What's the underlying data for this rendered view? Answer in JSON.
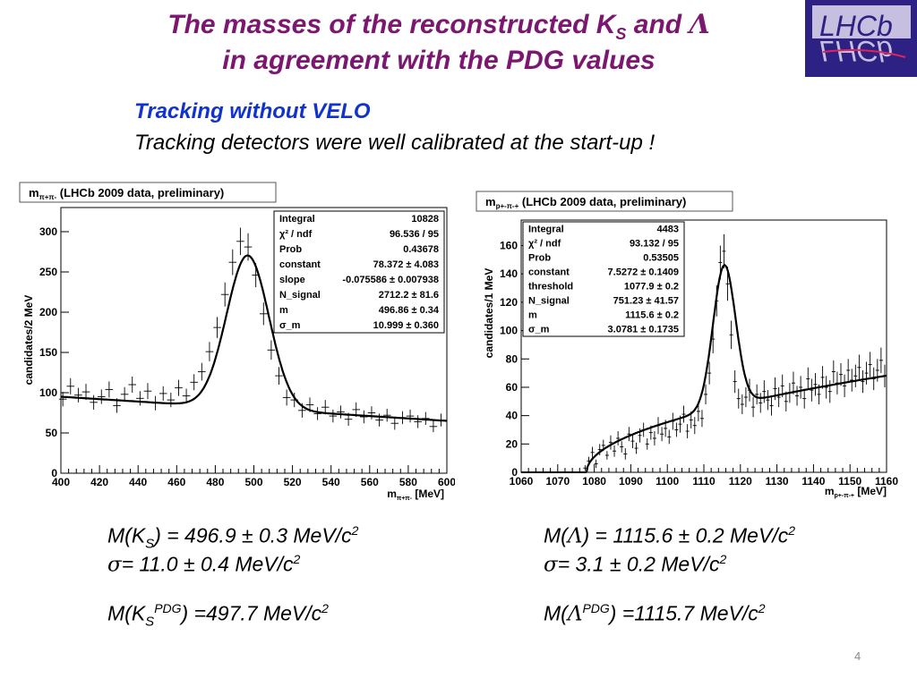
{
  "slide": {
    "title_line1": "The masses of the reconstructed K",
    "title_sub_s": "S",
    "title_and": " and ",
    "title_lambda": "Λ",
    "title_line2": "in agreement with the PDG values",
    "subtitle_blue": "Tracking without VELO",
    "subtitle_black": "Tracking detectors were well calibrated at the start-up !",
    "page_number": "4"
  },
  "logo": {
    "top": "LHCb",
    "bottom": "LHCb"
  },
  "results": {
    "ks_mass": {
      "prefix": "M(K",
      "sub": "S",
      "suffix": ") = 496.9 ± 0.3 MeV/c",
      "sup": "2"
    },
    "ks_sigma": {
      "symbol": "σ",
      "text": "= 11.0 ± 0.4 MeV/c",
      "sup": "2"
    },
    "ks_pdg": {
      "prefix": "M(K",
      "sub": "S",
      "sup_pdg": "PDG",
      "suffix": ") =497.7 MeV/c",
      "sup": "2"
    },
    "lambda_mass": {
      "prefix": "M(",
      "symbol": "Λ",
      "suffix": ") = 1115.6 ± 0.2 MeV/c",
      "sup": "2"
    },
    "lambda_sigma": {
      "symbol": "σ",
      "text": "= 3.1 ± 0.2 MeV/c",
      "sup": "2"
    },
    "lambda_pdg": {
      "prefix": "M(",
      "symbol": "Λ",
      "sup_pdg": "PDG",
      "suffix": ") =1115.7 MeV/c",
      "sup": "2"
    }
  },
  "chart_data": [
    {
      "type": "scatter",
      "title": {
        "main": "m",
        "sub": "π+π-",
        "rest": " (LHCb 2009 data, preliminary)"
      },
      "xlabel": {
        "main": "m",
        "sub": "π+π-",
        "rest": " [MeV]"
      },
      "ylabel": "candidates/2 MeV",
      "xlim": [
        400,
        600
      ],
      "ylim": [
        0,
        330
      ],
      "xticks": [
        400,
        420,
        440,
        460,
        480,
        500,
        520,
        540,
        560,
        580,
        600
      ],
      "yticks": [
        0,
        50,
        100,
        150,
        200,
        250,
        300
      ],
      "stats": [
        {
          "label": "Integral",
          "value": "10828"
        },
        {
          "label": "χ² / ndf",
          "value": "96.536 / 95"
        },
        {
          "label": "Prob",
          "value": "0.43678"
        },
        {
          "label": "constant",
          "value": "78.372 ± 4.083"
        },
        {
          "label": "slope",
          "value": "-0.075586 ± 0.007938"
        },
        {
          "label": "N_signal",
          "value": "2712.2 ± 81.6"
        },
        {
          "label": "m",
          "value": "496.86 ± 0.34"
        },
        {
          "label": "σ_m",
          "value": "10.999 ± 0.360"
        }
      ],
      "fit": {
        "model": "linear_plus_gaussian",
        "bg_at_400": 95,
        "bg_at_600": 65,
        "amplitude": 190,
        "mean": 496.86,
        "sigma": 11.0
      },
      "x": [
        401,
        405,
        409,
        413,
        417,
        421,
        425,
        429,
        433,
        437,
        441,
        445,
        449,
        453,
        457,
        461,
        465,
        469,
        473,
        477,
        481,
        485,
        489,
        493,
        497,
        501,
        505,
        509,
        513,
        517,
        521,
        525,
        529,
        533,
        537,
        541,
        545,
        549,
        553,
        557,
        561,
        565,
        569,
        573,
        577,
        581,
        585,
        589,
        593,
        597
      ],
      "y": [
        92,
        108,
        97,
        101,
        88,
        95,
        104,
        84,
        98,
        110,
        93,
        102,
        87,
        99,
        91,
        106,
        96,
        113,
        126,
        151,
        181,
        222,
        262,
        288,
        281,
        246,
        198,
        153,
        121,
        94,
        91,
        78,
        85,
        74,
        82,
        71,
        76,
        67,
        79,
        70,
        75,
        66,
        72,
        62,
        69,
        71,
        64,
        68,
        58,
        66
      ],
      "yerr": [
        9,
        10,
        9,
        10,
        9,
        9,
        10,
        9,
        9,
        10,
        9,
        10,
        9,
        9,
        9,
        10,
        9,
        10,
        11,
        12,
        13,
        15,
        16,
        17,
        17,
        15,
        14,
        12,
        11,
        10,
        9,
        9,
        9,
        8,
        9,
        8,
        8,
        8,
        9,
        8,
        8,
        8,
        8,
        8,
        8,
        8,
        8,
        8,
        7,
        8
      ]
    },
    {
      "type": "scatter",
      "title": {
        "main": "m",
        "sub": "p+-π-+",
        "rest": " (LHCb 2009 data, preliminary)"
      },
      "xlabel": {
        "main": "m",
        "sub": "p+-π-+",
        "rest": " [MeV]"
      },
      "ylabel": "candidates/1 MeV",
      "xlim": [
        1060,
        1160
      ],
      "ylim": [
        0,
        178
      ],
      "xticks": [
        1060,
        1070,
        1080,
        1090,
        1100,
        1110,
        1120,
        1130,
        1140,
        1150,
        1160
      ],
      "yticks": [
        0,
        20,
        40,
        60,
        80,
        100,
        120,
        140,
        160
      ],
      "stats": [
        {
          "label": "Integral",
          "value": "4483"
        },
        {
          "label": "χ² / ndf",
          "value": "93.132 / 95"
        },
        {
          "label": "Prob",
          "value": "0.53505"
        },
        {
          "label": "constant",
          "value": "7.5272 ± 0.1409"
        },
        {
          "label": "threshold",
          "value": "1077.9 ± 0.2"
        },
        {
          "label": "N_signal",
          "value": "751.23 ± 41.57"
        },
        {
          "label": "m",
          "value": "1115.6 ± 0.2"
        },
        {
          "label": "σ_m",
          "value": "3.0781 ± 0.1735"
        }
      ],
      "fit": {
        "model": "threshold_plus_gaussian",
        "threshold": 1077.9,
        "constant": 7.5272,
        "amplitude": 100,
        "mean": 1115.6,
        "sigma": 3.08
      },
      "x": [
        1077.5,
        1078.5,
        1079.5,
        1080.5,
        1081.5,
        1082.5,
        1083.5,
        1084.5,
        1085.5,
        1086.5,
        1087.5,
        1088.5,
        1089.5,
        1090.5,
        1091.5,
        1092.5,
        1093.5,
        1094.5,
        1095.5,
        1096.5,
        1097.5,
        1098.5,
        1099.5,
        1100.5,
        1101.5,
        1102.5,
        1103.5,
        1104.5,
        1105.5,
        1106.5,
        1107.5,
        1108.5,
        1109.5,
        1110.5,
        1111.5,
        1112.5,
        1113.5,
        1114.5,
        1115.5,
        1116.5,
        1117.5,
        1118.5,
        1119.5,
        1120.5,
        1121.5,
        1122.5,
        1123.5,
        1124.5,
        1125.5,
        1126.5,
        1127.5,
        1128.5,
        1129.5,
        1130.5,
        1131.5,
        1132.5,
        1133.5,
        1134.5,
        1135.5,
        1136.5,
        1137.5,
        1138.5,
        1139.5,
        1140.5,
        1141.5,
        1142.5,
        1143.5,
        1144.5,
        1145.5,
        1146.5,
        1147.5,
        1148.5,
        1149.5,
        1150.5,
        1151.5,
        1152.5,
        1153.5,
        1154.5,
        1155.5,
        1156.5,
        1157.5,
        1158.5,
        1159.5
      ],
      "y": [
        3,
        8,
        14,
        6,
        16,
        19,
        12,
        21,
        15,
        24,
        18,
        13,
        27,
        22,
        17,
        26,
        30,
        20,
        28,
        24,
        33,
        27,
        31,
        25,
        36,
        30,
        34,
        41,
        29,
        37,
        33,
        43,
        38,
        55,
        70,
        94,
        121,
        148,
        156,
        133,
        97,
        64,
        52,
        48,
        53,
        58,
        46,
        55,
        49,
        57,
        51,
        47,
        59,
        53,
        61,
        50,
        56,
        63,
        54,
        60,
        52,
        66,
        58,
        62,
        55,
        67,
        60,
        57,
        71,
        63,
        69,
        61,
        72,
        65,
        68,
        74,
        64,
        70,
        76,
        66,
        72,
        79,
        68
      ],
      "yerr": [
        2,
        3,
        4,
        3,
        4,
        4,
        3,
        5,
        4,
        5,
        4,
        4,
        5,
        5,
        4,
        5,
        5,
        4,
        5,
        5,
        6,
        5,
        6,
        5,
        6,
        5,
        6,
        6,
        5,
        6,
        6,
        7,
        6,
        7,
        8,
        10,
        11,
        12,
        12,
        12,
        10,
        8,
        7,
        7,
        7,
        8,
        7,
        7,
        7,
        8,
        7,
        7,
        8,
        7,
        8,
        7,
        7,
        8,
        7,
        8,
        7,
        8,
        8,
        8,
        7,
        8,
        8,
        8,
        8,
        8,
        8,
        8,
        8,
        8,
        8,
        9,
        8,
        8,
        9,
        8,
        8,
        9,
        8
      ]
    }
  ]
}
